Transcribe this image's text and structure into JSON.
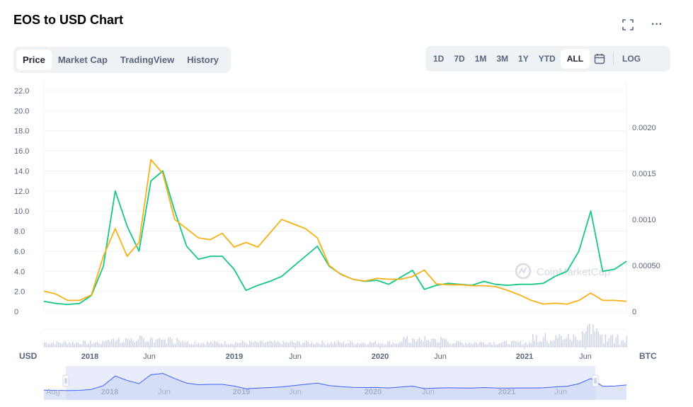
{
  "header": {
    "title": "EOS to USD Chart",
    "fullscreen_icon": "expand-icon",
    "more_icon": "more-horizontal-icon",
    "more_label": "···"
  },
  "tabs": [
    {
      "label": "Price",
      "active": true
    },
    {
      "label": "Market Cap",
      "active": false
    },
    {
      "label": "TradingView",
      "active": false
    },
    {
      "label": "History",
      "active": false
    }
  ],
  "ranges": [
    {
      "label": "1D",
      "active": false
    },
    {
      "label": "7D",
      "active": false
    },
    {
      "label": "1M",
      "active": false
    },
    {
      "label": "3M",
      "active": false
    },
    {
      "label": "1Y",
      "active": false
    },
    {
      "label": "YTD",
      "active": false
    },
    {
      "label": "ALL",
      "active": true
    }
  ],
  "calendar_icon": "calendar-icon",
  "log_label": "LOG",
  "chart_data": {
    "type": "line",
    "left_axis_unit": "USD",
    "right_axis_unit": "BTC",
    "watermark": "CoinMarketCap",
    "left_ticks": [
      "22.0",
      "20.0",
      "18.0",
      "16.0",
      "14.0",
      "12.0",
      "10.0",
      "8.0",
      "6.0",
      "4.0",
      "2.0",
      "0"
    ],
    "right_ticks": [
      "0.0020",
      "0.0015",
      "0.0010",
      "0.00050",
      "0"
    ],
    "x_labels": [
      "2018",
      "Jun",
      "2019",
      "Jun",
      "2020",
      "Jun",
      "2021",
      "Jun"
    ],
    "navigator_labels": [
      "Aug",
      "2018",
      "Jun",
      "2019",
      "Jun",
      "2020",
      "Jun",
      "2021",
      "Jun"
    ],
    "left_ylim": [
      0,
      22
    ],
    "right_ylim": [
      0,
      0.0024
    ],
    "x": [
      "2017-07",
      "2017-08",
      "2017-09",
      "2017-10",
      "2017-11",
      "2017-12",
      "2018-01",
      "2018-02",
      "2018-03",
      "2018-04",
      "2018-05",
      "2018-06",
      "2018-07",
      "2018-08",
      "2018-09",
      "2018-10",
      "2018-11",
      "2018-12",
      "2019-01",
      "2019-02",
      "2019-03",
      "2019-04",
      "2019-05",
      "2019-06",
      "2019-07",
      "2019-08",
      "2019-09",
      "2019-10",
      "2019-11",
      "2019-12",
      "2020-01",
      "2020-02",
      "2020-03",
      "2020-04",
      "2020-05",
      "2020-06",
      "2020-07",
      "2020-08",
      "2020-09",
      "2020-10",
      "2020-11",
      "2020-12",
      "2021-01",
      "2021-02",
      "2021-03",
      "2021-04",
      "2021-05",
      "2021-06",
      "2021-07",
      "2021-08"
    ],
    "series": [
      {
        "name": "USD",
        "color": "#16c784",
        "values": [
          1.0,
          0.8,
          0.7,
          0.8,
          1.6,
          4.5,
          12.0,
          8.5,
          6.0,
          13.0,
          14.0,
          10.0,
          6.5,
          5.2,
          5.5,
          5.5,
          4.2,
          2.1,
          2.6,
          3.0,
          3.5,
          4.5,
          5.5,
          6.5,
          4.5,
          3.7,
          3.2,
          3.0,
          3.1,
          2.7,
          3.4,
          4.1,
          2.2,
          2.6,
          2.8,
          2.7,
          2.6,
          3.0,
          2.7,
          2.6,
          2.7,
          2.7,
          2.8,
          3.5,
          4.0,
          6.0,
          10.0,
          4.0,
          4.2,
          5.0
        ]
      },
      {
        "name": "BTC",
        "color": "#f7b21a",
        "values": [
          0.00022,
          0.00019,
          0.00012,
          0.00012,
          0.00018,
          0.0006,
          0.0009,
          0.0006,
          0.00075,
          0.00165,
          0.0015,
          0.001,
          0.0009,
          0.0008,
          0.00078,
          0.00085,
          0.0007,
          0.00075,
          0.0007,
          0.00085,
          0.001,
          0.00095,
          0.0009,
          0.0008,
          0.0005,
          0.0004,
          0.00035,
          0.00033,
          0.00036,
          0.00035,
          0.00035,
          0.00038,
          0.00045,
          0.0003,
          0.00029,
          0.00029,
          0.00028,
          0.00028,
          0.00027,
          0.00023,
          0.00018,
          0.00012,
          8e-05,
          9e-05,
          8e-05,
          0.00012,
          0.0002,
          0.00012,
          0.00012,
          0.00011
        ]
      }
    ]
  }
}
